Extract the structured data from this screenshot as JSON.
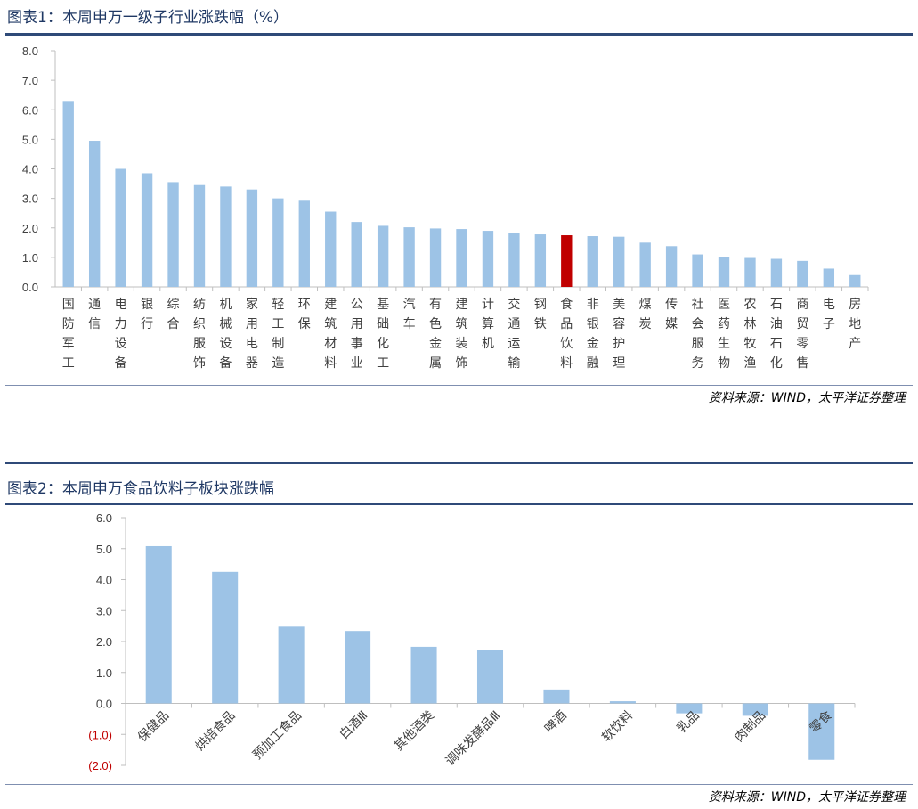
{
  "charts": [
    {
      "title": "图表1：本周申万一级子行业涨跌幅（%）",
      "source": "资料来源：WIND，太平洋证券整理"
    },
    {
      "title": "图表2：本周申万食品饮料子板块涨跌幅",
      "source": "资料来源：WIND，太平洋证券整理"
    }
  ],
  "colors": {
    "bar": "#9dc3e6",
    "highlight": "#c00000",
    "axis": "#bfbfbf",
    "negative_tick": "#c00000"
  },
  "chart_data": [
    {
      "type": "bar",
      "title": "本周申万一级子行业涨跌幅（%）",
      "categories": [
        "国防军工",
        "通信",
        "电力设备",
        "银行",
        "综合",
        "纺织服饰",
        "机械设备",
        "家用电器",
        "轻工制造",
        "环保",
        "建筑材料",
        "公用事业",
        "基础化工",
        "汽车",
        "有色金属",
        "建筑装饰",
        "计算机",
        "交通运输",
        "钢铁",
        "食品饮料",
        "非银金融",
        "美容护理",
        "煤炭",
        "传媒",
        "社会服务",
        "医药生物",
        "农林牧渔",
        "石油石化",
        "商贸零售",
        "电子",
        "房地产"
      ],
      "values": [
        6.3,
        4.95,
        4.0,
        3.85,
        3.55,
        3.45,
        3.4,
        3.3,
        3.0,
        2.92,
        2.55,
        2.2,
        2.07,
        2.02,
        1.98,
        1.96,
        1.9,
        1.82,
        1.78,
        1.75,
        1.72,
        1.7,
        1.5,
        1.38,
        1.1,
        1.0,
        0.98,
        0.95,
        0.88,
        0.62,
        0.4
      ],
      "highlight": "食品饮料",
      "yticks": [
        "0.0",
        "1.0",
        "2.0",
        "3.0",
        "4.0",
        "5.0",
        "6.0",
        "7.0",
        "8.0"
      ],
      "ylim": [
        0,
        8
      ],
      "xlabel": "",
      "ylabel": "",
      "grid": false
    },
    {
      "type": "bar",
      "title": "本周申万食品饮料子板块涨跌幅",
      "categories": [
        "保健品",
        "烘焙食品",
        "预加工食品",
        "白酒Ⅲ",
        "其他酒类",
        "调味发酵品Ⅲ",
        "啤酒",
        "软饮料",
        "乳品",
        "肉制品",
        "零食"
      ],
      "values": [
        5.08,
        4.25,
        2.48,
        2.34,
        1.83,
        1.72,
        0.45,
        0.07,
        -0.32,
        -0.4,
        -1.82
      ],
      "yticks": [
        "6.0",
        "5.0",
        "4.0",
        "3.0",
        "2.0",
        "1.0",
        "0.0",
        "(1.0)",
        "(2.0)"
      ],
      "ylim": [
        -2,
        6
      ],
      "xlabel": "",
      "ylabel": "",
      "grid": false
    }
  ]
}
